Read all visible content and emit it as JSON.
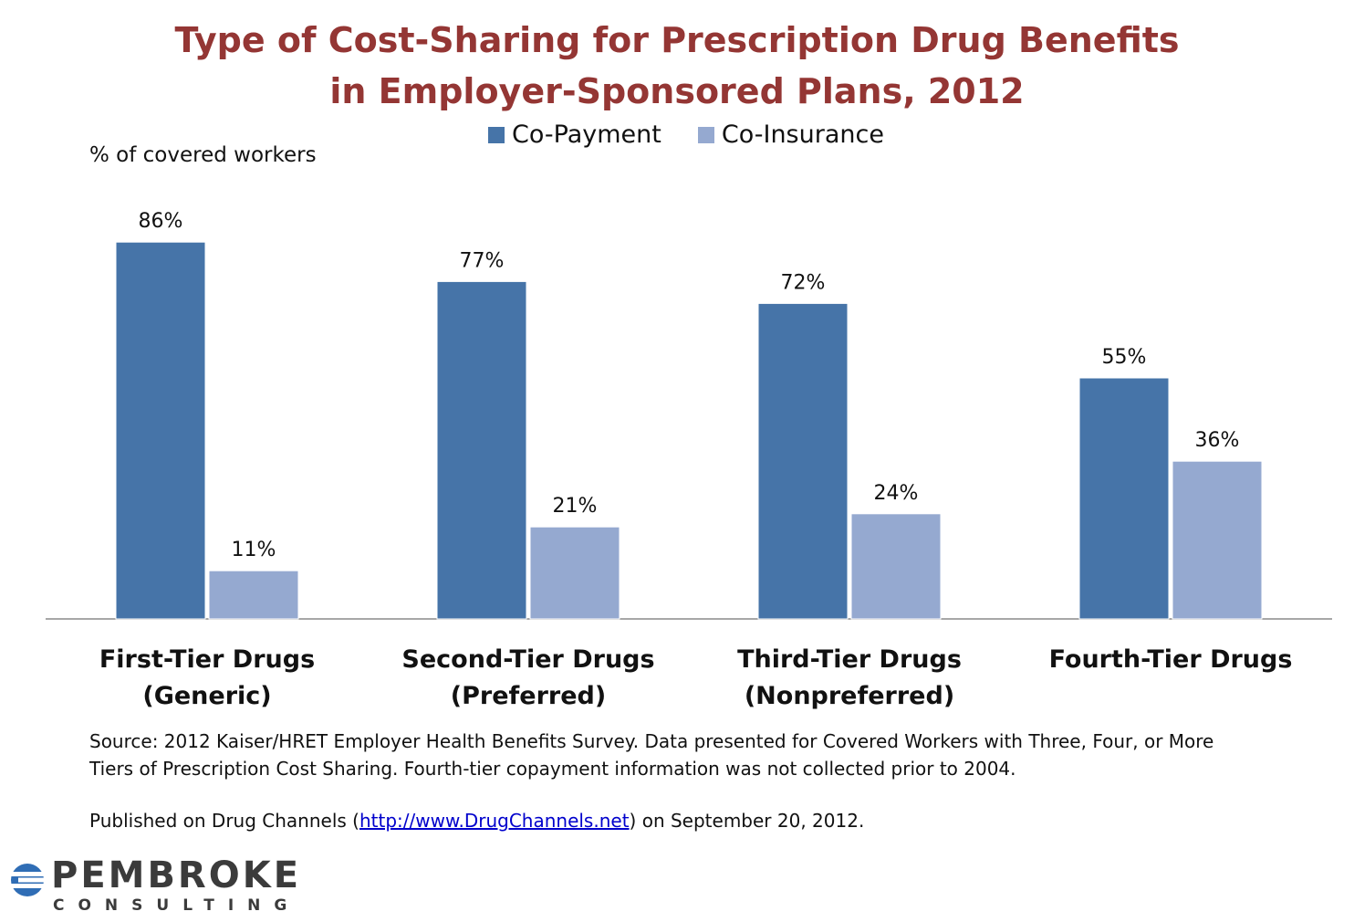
{
  "title_line1": "Type of Cost-Sharing for Prescription Drug Benefits",
  "title_line2": "in Employer-Sponsored Plans, 2012",
  "ylabel": "% of covered workers",
  "chart_data": {
    "type": "bar",
    "categories": [
      [
        "First-Tier Drugs",
        "(Generic)"
      ],
      [
        "Second-Tier Drugs",
        "(Preferred)"
      ],
      [
        "Third-Tier Drugs",
        "(Nonpreferred)"
      ],
      [
        "Fourth-Tier Drugs",
        ""
      ]
    ],
    "series": [
      {
        "name": "Co-Payment",
        "values": [
          86,
          77,
          72,
          55
        ],
        "labels": [
          "86%",
          "77%",
          "72%",
          "55%"
        ],
        "color": "#4674a8"
      },
      {
        "name": "Co-Insurance",
        "values": [
          11,
          21,
          24,
          36
        ],
        "labels": [
          "11%",
          "21%",
          "24%",
          "36%"
        ],
        "color": "#95a9d0"
      }
    ],
    "ylim": [
      0,
      100
    ],
    "grid": false,
    "legend": "top-center"
  },
  "source_line1": "Source: 2012 Kaiser/HRET Employer Health Benefits Survey. Data presented for Covered Workers with Three, Four, or More",
  "source_line2": "Tiers of Prescription Cost Sharing. Fourth-tier copayment information was not collected prior to 2004.",
  "published_prefix": "Published on Drug Channels (",
  "published_link": "http://www.DrugChannels.net",
  "published_suffix": ") on September 20, 2012.",
  "logo": {
    "name": "PEMBROKE",
    "sub": "CONSULTING"
  }
}
